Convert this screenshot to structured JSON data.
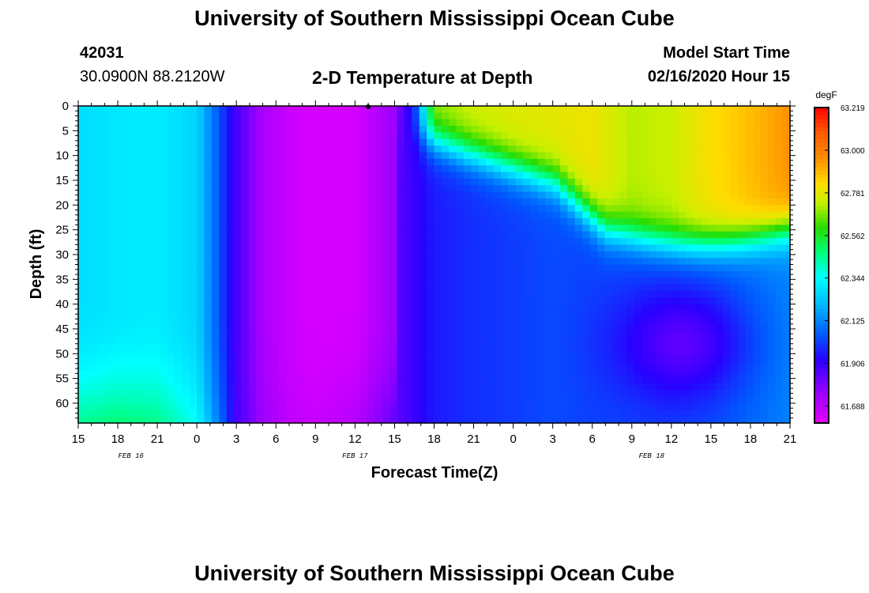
{
  "header": {
    "title": "University of Southern Mississippi Ocean Cube",
    "station_id": "42031",
    "location": "30.0900N 88.2120W",
    "plot_title": "2-D Temperature at Depth",
    "start_label": "Model Start Time",
    "start_value": "02/16/2020 Hour 15"
  },
  "footer": {
    "title": "University of Southern Mississippi Ocean Cube"
  },
  "chart_data": {
    "type": "heatmap",
    "title": "2-D Temperature at Depth",
    "xlabel": "Forecast Time(Z)",
    "ylabel": "Depth (ft)",
    "x_tick_labels": [
      "15",
      "18",
      "21",
      "0",
      "3",
      "6",
      "9",
      "12",
      "15",
      "18",
      "21",
      "0",
      "3",
      "6",
      "9",
      "12",
      "15",
      "18",
      "21"
    ],
    "x_hours_from_start": [
      0,
      3,
      6,
      9,
      12,
      15,
      18,
      21,
      24,
      27,
      30,
      33,
      36,
      39,
      42,
      45,
      48,
      51,
      54
    ],
    "date_labels": [
      {
        "label": "FEB 16",
        "hour": 4
      },
      {
        "label": "FEB 17",
        "hour": 21
      },
      {
        "label": "FEB 18",
        "hour": 43.5
      }
    ],
    "y_tick_labels": [
      "0",
      "5",
      "10",
      "15",
      "20",
      "25",
      "30",
      "35",
      "40",
      "45",
      "50",
      "55",
      "60"
    ],
    "ylim": [
      0,
      64
    ],
    "xlim_hours": [
      0,
      54
    ],
    "colorbar": {
      "unit": "degF",
      "tick_labels": [
        "63.219",
        "63.000",
        "62.781",
        "62.562",
        "62.344",
        "62.125",
        "61.906",
        "61.688"
      ],
      "min": 61.6,
      "max": 63.219
    },
    "temperature_model": {
      "note": "approximate field values (degF) sampled at forecast hour and depth",
      "hours": [
        0,
        3,
        6,
        9,
        10,
        11,
        12,
        14,
        16,
        18,
        21,
        24,
        25.5,
        27,
        30,
        33,
        36,
        39,
        42,
        45,
        48,
        51,
        54
      ],
      "profiles_surface_to_bottom": {
        "shallow_0_10ft": [
          62.28,
          62.3,
          62.31,
          62.26,
          62.13,
          62.0,
          61.88,
          61.72,
          61.66,
          61.63,
          61.64,
          61.75,
          62.0,
          62.7,
          62.75,
          62.77,
          62.78,
          62.8,
          62.72,
          62.74,
          62.82,
          62.88,
          62.95
        ],
        "deep_60ft": [
          62.45,
          62.48,
          62.46,
          62.35,
          62.2,
          62.05,
          61.88,
          61.75,
          61.68,
          61.66,
          61.7,
          61.84,
          61.9,
          61.96,
          61.99,
          62.01,
          62.03,
          62.02,
          62.02,
          62.02,
          62.04,
          62.08,
          62.12
        ]
      }
    }
  }
}
